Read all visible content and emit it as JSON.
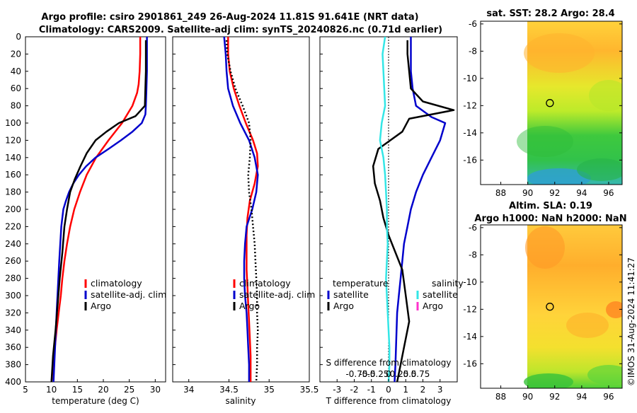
{
  "title_line1": "Argo profile: csiro 2901861_249 26-Aug-2024 11.81S 91.641E (NRT data)",
  "title_line2": "Climatology: CARS2009. Satellite-adj clim: synTS_20240826.nc (0.71d earlier)",
  "depth_ticks": [
    "0",
    "20",
    "40",
    "60",
    "80",
    "100",
    "120",
    "140",
    "160",
    "180",
    "200",
    "220",
    "240",
    "260",
    "280",
    "300",
    "320",
    "340",
    "360",
    "380",
    "400"
  ],
  "colors": {
    "climatology": "#ff0000",
    "satellite": "#0000cc",
    "argo": "#000000",
    "sat_salinity": "#33e6e6",
    "argo_salinity_diff": "#ff33cc"
  },
  "chart_data": [
    {
      "type": "line",
      "name": "temperature",
      "xlabel": "temperature (deg C)",
      "xlim": [
        5,
        32
      ],
      "xticks": [
        "5",
        "10",
        "15",
        "20",
        "25",
        "30"
      ],
      "ylim": [
        0,
        400
      ],
      "y_reversed": true,
      "legend": [
        "climatology",
        "satellite-adj. clim",
        "Argo"
      ],
      "series": [
        {
          "name": "climatology",
          "color": "#ff0000",
          "x": [
            27.1,
            27.1,
            27.0,
            26.8,
            26.5,
            25.6,
            23.6,
            21.0,
            18.6,
            16.8,
            15.5,
            14.4,
            13.6,
            13.0,
            12.5,
            12.1,
            11.8,
            11.4,
            11.0,
            10.5,
            10.0
          ],
          "y": [
            0,
            20,
            40,
            55,
            65,
            80,
            100,
            120,
            140,
            160,
            180,
            200,
            220,
            240,
            260,
            280,
            300,
            320,
            340,
            370,
            400
          ]
        },
        {
          "name": "satellite-adj. clim",
          "color": "#0000cc",
          "x": [
            28.4,
            28.4,
            28.4,
            28.3,
            28.2,
            28.1,
            27.4,
            25.6,
            23.4,
            21.0,
            18.5,
            16.7,
            15.3,
            14.2,
            13.4,
            12.8,
            12.3,
            11.9,
            11.5,
            11.0,
            10.4
          ],
          "y": [
            0,
            20,
            40,
            60,
            80,
            90,
            100,
            110,
            120,
            130,
            140,
            150,
            160,
            170,
            180,
            190,
            200,
            220,
            260,
            320,
            400
          ]
        },
        {
          "name": "Argo",
          "color": "#000000",
          "x": [
            28.2,
            28.2,
            28.2,
            28.1,
            28.0,
            26.2,
            23.0,
            20.6,
            18.5,
            16.8,
            15.6,
            14.5,
            13.6,
            13.0,
            12.5,
            12.1,
            11.6,
            11.2,
            10.8,
            10.3,
            10.0
          ],
          "y": [
            4,
            20,
            40,
            60,
            80,
            92,
            100,
            110,
            120,
            135,
            150,
            165,
            180,
            200,
            220,
            250,
            280,
            310,
            340,
            370,
            400
          ]
        }
      ]
    },
    {
      "type": "line",
      "name": "salinity",
      "xlabel": "salinity",
      "xlim": [
        33.8,
        35.5
      ],
      "xticks": [
        "34",
        "34.5",
        "35",
        "35.5"
      ],
      "ylim": [
        0,
        400
      ],
      "y_reversed": true,
      "legend": [
        "climatology",
        "satellite-adj. clim",
        "Argo"
      ],
      "series": [
        {
          "name": "climatology",
          "color": "#ff0000",
          "x": [
            34.49,
            34.49,
            34.51,
            34.56,
            34.63,
            34.71,
            34.8,
            34.85,
            34.86,
            34.82,
            34.76,
            34.73,
            34.72,
            34.72,
            34.72,
            34.73,
            34.74,
            34.75,
            34.76,
            34.77,
            34.77
          ],
          "y": [
            0,
            20,
            40,
            60,
            80,
            100,
            120,
            135,
            150,
            170,
            190,
            210,
            230,
            250,
            270,
            290,
            310,
            330,
            350,
            370,
            400
          ]
        },
        {
          "name": "satellite-adj. clim",
          "color": "#0000cc",
          "x": [
            34.44,
            34.46,
            34.47,
            34.49,
            34.55,
            34.64,
            34.75,
            34.82,
            34.86,
            34.84,
            34.79,
            34.72,
            34.7,
            34.69,
            34.69,
            34.7,
            34.72,
            34.73,
            34.74,
            34.75,
            34.75
          ],
          "y": [
            0,
            20,
            40,
            60,
            80,
            100,
            120,
            140,
            160,
            180,
            200,
            220,
            240,
            260,
            280,
            300,
            320,
            340,
            360,
            380,
            400
          ]
        },
        {
          "name": "Argo",
          "color": "#000000",
          "dashed": true,
          "x": [
            34.47,
            34.48,
            34.52,
            34.58,
            34.67,
            34.75,
            34.77,
            34.76,
            34.74,
            34.75,
            34.78,
            34.8,
            34.82,
            34.83,
            34.84,
            34.85,
            34.85,
            34.86,
            34.85,
            34.85,
            34.84
          ],
          "y": [
            4,
            20,
            40,
            60,
            80,
            100,
            120,
            140,
            160,
            180,
            200,
            220,
            240,
            260,
            280,
            300,
            320,
            340,
            360,
            380,
            400
          ]
        }
      ]
    },
    {
      "type": "line",
      "name": "difference",
      "xlabel": "T difference from climatology",
      "xlim": [
        -4,
        4
      ],
      "xticks": [
        "-3",
        "-2",
        "-1",
        "0",
        "1",
        "2",
        "3"
      ],
      "x2label": "S difference from climatology",
      "x2ticks": [
        "-0.75",
        "-0.5",
        "-0.25",
        "0",
        "0.25",
        "0.5",
        "0.75"
      ],
      "ylim": [
        0,
        400
      ],
      "y_reversed": true,
      "legend_groups": [
        {
          "title": "temperature",
          "entries": [
            "satellite",
            "Argo"
          ]
        },
        {
          "title": "salinity",
          "entries": [
            "satellite",
            "Argo"
          ]
        }
      ],
      "series": [
        {
          "name": "satellite (temperature)",
          "color": "#0000cc",
          "x": [
            1.3,
            1.3,
            1.3,
            1.4,
            1.6,
            2.5,
            3.3,
            3.0,
            2.5,
            2.0,
            1.6,
            1.3,
            1.1,
            0.9,
            0.8,
            0.7,
            0.6,
            0.5,
            0.45,
            0.4,
            0.35
          ],
          "y": [
            0,
            20,
            40,
            60,
            80,
            93,
            100,
            120,
            140,
            160,
            180,
            200,
            220,
            240,
            260,
            280,
            300,
            320,
            350,
            380,
            400
          ]
        },
        {
          "name": "Argo (temperature)",
          "color": "#000000",
          "x": [
            1.1,
            1.1,
            1.2,
            1.3,
            2.0,
            3.8,
            1.2,
            0.8,
            -0.6,
            -0.9,
            -0.8,
            -0.5,
            -0.3,
            0.0,
            0.4,
            0.8,
            1.0,
            1.2,
            0.9,
            0.7,
            0.5
          ],
          "y": [
            4,
            20,
            40,
            60,
            75,
            85,
            95,
            110,
            130,
            150,
            170,
            190,
            210,
            230,
            250,
            270,
            300,
            330,
            360,
            380,
            400
          ]
        },
        {
          "name": "satellite (salinity)",
          "color": "#33e6e6",
          "x": [
            -0.2,
            -0.35,
            -0.3,
            -0.25,
            -0.2,
            -0.4,
            -0.5,
            -0.3,
            -0.2,
            -0.15,
            -0.1,
            -0.1,
            -0.05,
            -0.1,
            -0.15,
            -0.1,
            -0.05,
            0.0,
            0.05,
            0.05,
            0.0
          ],
          "y": [
            0,
            20,
            40,
            60,
            80,
            100,
            120,
            140,
            160,
            180,
            200,
            220,
            240,
            260,
            280,
            300,
            320,
            340,
            360,
            380,
            400
          ]
        }
      ]
    },
    {
      "type": "heatmap",
      "name": "sst_map",
      "title": "sat. SST: 28.2 Argo: 28.4",
      "xticks": [
        "88",
        "90",
        "92",
        "94",
        "96"
      ],
      "yticks": [
        "-6",
        "-8",
        "-10",
        "-12",
        "-14",
        "-16"
      ],
      "xlim": [
        86.5,
        97.0
      ],
      "ylim": [
        -17.8,
        -5.8
      ],
      "marker": {
        "lon": 91.64,
        "lat": -11.81
      }
    },
    {
      "type": "heatmap",
      "name": "sla_map",
      "title_line1": "Altim. SLA: 0.19",
      "title_line2": "Argo h1000: NaN h2000: NaN",
      "xticks": [
        "88",
        "90",
        "92",
        "94",
        "96"
      ],
      "yticks": [
        "-6",
        "-8",
        "-10",
        "-12",
        "-14",
        "-16"
      ],
      "xlim": [
        86.5,
        97.0
      ],
      "ylim": [
        -17.8,
        -5.8
      ],
      "marker": {
        "lon": 91.64,
        "lat": -11.81
      }
    }
  ],
  "credit": "©IMOS 31-Aug-2024 11:41:27"
}
